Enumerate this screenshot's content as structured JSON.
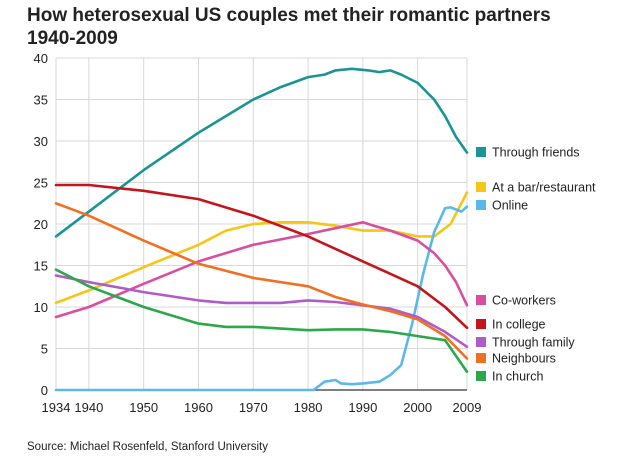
{
  "chart_data": {
    "type": "line",
    "title": "How heterosexual US couples met their romantic partners",
    "subtitle": "1940-2009",
    "xlabel": "",
    "ylabel": "",
    "xlim": [
      1934,
      2009
    ],
    "ylim": [
      0,
      40
    ],
    "x_ticks": [
      "1934",
      "1940",
      "1950",
      "1960",
      "1970",
      "1980",
      "1990",
      "2000",
      "2009"
    ],
    "y_ticks": [
      "0",
      "5",
      "10",
      "15",
      "20",
      "25",
      "30",
      "35",
      "40"
    ],
    "grid": true,
    "legend_position": "right",
    "series": [
      {
        "name": "Through friends",
        "color": "#1a9494",
        "points": [
          [
            1934,
            18.5
          ],
          [
            1940,
            21.5
          ],
          [
            1950,
            26.5
          ],
          [
            1960,
            31
          ],
          [
            1970,
            35
          ],
          [
            1975,
            36.5
          ],
          [
            1980,
            37.7
          ],
          [
            1983,
            38
          ],
          [
            1985,
            38.5
          ],
          [
            1988,
            38.7
          ],
          [
            1991,
            38.5
          ],
          [
            1993,
            38.3
          ],
          [
            1995,
            38.5
          ],
          [
            1997,
            38
          ],
          [
            2000,
            37
          ],
          [
            2003,
            35
          ],
          [
            2005,
            33
          ],
          [
            2007,
            30.5
          ],
          [
            2009,
            28.6
          ]
        ]
      },
      {
        "name": "At a bar/restaurant",
        "color": "#f5c518",
        "points": [
          [
            1934,
            10.5
          ],
          [
            1940,
            12
          ],
          [
            1950,
            14.8
          ],
          [
            1960,
            17.5
          ],
          [
            1965,
            19.2
          ],
          [
            1970,
            20
          ],
          [
            1975,
            20.2
          ],
          [
            1980,
            20.2
          ],
          [
            1985,
            19.8
          ],
          [
            1990,
            19.2
          ],
          [
            1995,
            19.2
          ],
          [
            2000,
            18.5
          ],
          [
            2003,
            18.5
          ],
          [
            2006,
            20
          ],
          [
            2009,
            23.8
          ]
        ]
      },
      {
        "name": "Online",
        "color": "#5bb8ea",
        "points": [
          [
            1934,
            0
          ],
          [
            1981,
            0
          ],
          [
            1983,
            1
          ],
          [
            1985,
            1.2
          ],
          [
            1986,
            0.8
          ],
          [
            1988,
            0.7
          ],
          [
            1990,
            0.8
          ],
          [
            1993,
            1
          ],
          [
            1995,
            1.8
          ],
          [
            1997,
            3
          ],
          [
            1999,
            8
          ],
          [
            2001,
            14
          ],
          [
            2003,
            19
          ],
          [
            2005,
            21.9
          ],
          [
            2006,
            22
          ],
          [
            2008,
            21.5
          ],
          [
            2009,
            22.1
          ]
        ]
      },
      {
        "name": "Co-workers",
        "color": "#d94fa0",
        "points": [
          [
            1934,
            8.8
          ],
          [
            1940,
            10
          ],
          [
            1950,
            12.8
          ],
          [
            1960,
            15.5
          ],
          [
            1970,
            17.5
          ],
          [
            1980,
            18.8
          ],
          [
            1985,
            19.5
          ],
          [
            1990,
            20.2
          ],
          [
            1992,
            19.8
          ],
          [
            1995,
            19.2
          ],
          [
            2000,
            18
          ],
          [
            2003,
            16.5
          ],
          [
            2005,
            15
          ],
          [
            2007,
            13
          ],
          [
            2009,
            10.2
          ]
        ]
      },
      {
        "name": "In college",
        "color": "#c4151c",
        "points": [
          [
            1934,
            24.7
          ],
          [
            1940,
            24.7
          ],
          [
            1950,
            24
          ],
          [
            1960,
            23
          ],
          [
            1970,
            21
          ],
          [
            1980,
            18.5
          ],
          [
            1990,
            15.5
          ],
          [
            1995,
            14
          ],
          [
            2000,
            12.5
          ],
          [
            2005,
            10
          ],
          [
            2009,
            7.5
          ]
        ]
      },
      {
        "name": "Through family",
        "color": "#b05cc8",
        "points": [
          [
            1934,
            13.8
          ],
          [
            1940,
            13
          ],
          [
            1950,
            11.8
          ],
          [
            1960,
            10.8
          ],
          [
            1965,
            10.5
          ],
          [
            1970,
            10.5
          ],
          [
            1975,
            10.5
          ],
          [
            1980,
            10.8
          ],
          [
            1985,
            10.6
          ],
          [
            1990,
            10.2
          ],
          [
            1995,
            9.8
          ],
          [
            2000,
            8.8
          ],
          [
            2005,
            7
          ],
          [
            2009,
            5.2
          ]
        ]
      },
      {
        "name": "Neighbours",
        "color": "#f07022",
        "points": [
          [
            1934,
            22.5
          ],
          [
            1940,
            21
          ],
          [
            1950,
            18
          ],
          [
            1960,
            15.2
          ],
          [
            1970,
            13.5
          ],
          [
            1980,
            12.5
          ],
          [
            1985,
            11.2
          ],
          [
            1990,
            10.3
          ],
          [
            1995,
            9.5
          ],
          [
            2000,
            8.5
          ],
          [
            2005,
            6.5
          ],
          [
            2009,
            3.8
          ]
        ]
      },
      {
        "name": "In church",
        "color": "#2ca84a",
        "points": [
          [
            1934,
            14.5
          ],
          [
            1940,
            12.5
          ],
          [
            1950,
            10
          ],
          [
            1960,
            8
          ],
          [
            1965,
            7.6
          ],
          [
            1970,
            7.6
          ],
          [
            1980,
            7.2
          ],
          [
            1985,
            7.3
          ],
          [
            1990,
            7.3
          ],
          [
            1995,
            7
          ],
          [
            2000,
            6.5
          ],
          [
            2005,
            6
          ],
          [
            2009,
            2.2
          ]
        ]
      }
    ],
    "legend": [
      {
        "label": "Through friends",
        "color": "#1a9494"
      },
      {
        "label": "At a bar/restaurant",
        "color": "#f5c518"
      },
      {
        "label": "Online",
        "color": "#5bb8ea"
      },
      {
        "label": "Co-workers",
        "color": "#d94fa0"
      },
      {
        "label": "In college",
        "color": "#c4151c"
      },
      {
        "label": "Through family",
        "color": "#b05cc8"
      },
      {
        "label": "Neighbours",
        "color": "#f07022"
      },
      {
        "label": "In church",
        "color": "#2ca84a"
      }
    ]
  },
  "source": "Source: Michael Rosenfeld, Stanford University"
}
